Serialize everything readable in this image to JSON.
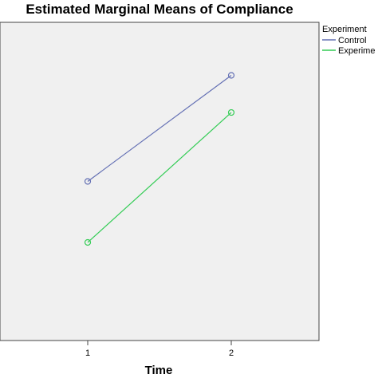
{
  "chart_data": {
    "type": "line",
    "title": "Estimated Marginal Means of Compliance",
    "xlabel": "Time",
    "ylabel": "",
    "categories": [
      "1",
      "2"
    ],
    "series": [
      {
        "name": "Control",
        "values": [
          5.0,
          7.0
        ],
        "color": "#6470b4"
      },
      {
        "name": "Experime",
        "values": [
          3.85,
          6.3
        ],
        "color": "#33cc55"
      }
    ],
    "ylim": [
      2.0,
      8.0
    ],
    "y_ticks_shown": false,
    "grid": false,
    "legend": {
      "title": "Experiment",
      "placement": "right-top"
    },
    "plot_background": "#f0f0f0",
    "marker": "open-circle"
  }
}
